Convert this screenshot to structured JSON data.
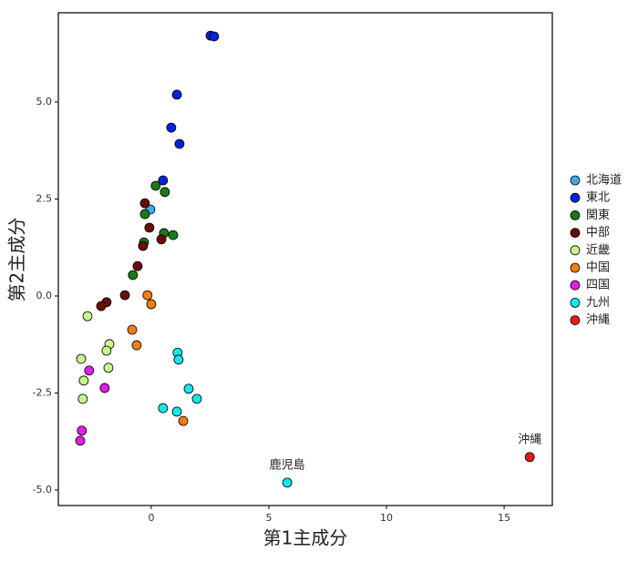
{
  "chart_data": {
    "type": "scatter",
    "xlabel": "第1主成分",
    "ylabel": "第2主成分",
    "xlim": [
      -3.95,
      17.05
    ],
    "ylim": [
      -5.4,
      7.3
    ],
    "xticks": [
      0,
      5,
      10,
      15
    ],
    "yticks": [
      {
        "value": -5,
        "label": "-5.0"
      },
      -2.5,
      {
        "value": 0,
        "label": "0.0"
      },
      2.5,
      {
        "value": 5,
        "label": "5.0"
      }
    ],
    "legend": "right",
    "series": [
      {
        "name": "北海道",
        "color": "#3fa9f5",
        "x": [
          -0.04
        ],
        "values": [
          2.23
        ]
      },
      {
        "name": "東北",
        "color": "#0022dd",
        "x": [
          2.52,
          2.67,
          1.09,
          0.85,
          1.2,
          0.5
        ],
        "values": [
          6.71,
          6.69,
          5.19,
          4.34,
          3.92,
          2.98
        ]
      },
      {
        "name": "関東",
        "color": "#1a7a1a",
        "x": [
          0.19,
          0.58,
          -0.27,
          0.54,
          0.93,
          -0.31,
          -0.78
        ],
        "values": [
          2.84,
          2.68,
          2.11,
          1.62,
          1.57,
          1.38,
          0.54
        ]
      },
      {
        "name": "中部",
        "color": "#6b0b0b",
        "x": [
          -0.27,
          -0.08,
          0.43,
          -0.35,
          -0.58,
          -1.12,
          -1.9,
          -2.13
        ],
        "values": [
          2.39,
          1.76,
          1.46,
          1.29,
          0.77,
          0.02,
          -0.16,
          -0.26
        ]
      },
      {
        "name": "近畿",
        "color": "#c8f58c",
        "x": [
          -2.71,
          -1.78,
          -1.9,
          -1.82,
          -2.98,
          -2.87,
          -2.91
        ],
        "values": [
          -0.52,
          -1.24,
          -1.41,
          -1.85,
          -1.62,
          -2.18,
          -2.65
        ]
      },
      {
        "name": "中国",
        "color": "#f07e10",
        "x": [
          -0.16,
          0,
          -0.81,
          -0.62,
          1.36
        ],
        "values": [
          0.02,
          -0.21,
          -0.87,
          -1.27,
          -3.22
        ]
      },
      {
        "name": "四国",
        "color": "#e61ee6",
        "x": [
          -2.64,
          -1.98,
          -2.95,
          -3.02
        ],
        "values": [
          -1.92,
          -2.37,
          -3.47,
          -3.73
        ]
      },
      {
        "name": "九州",
        "color": "#16e8e8",
        "x": [
          1.12,
          1.16,
          1.59,
          1.94,
          0.5,
          1.09,
          5.78
        ],
        "values": [
          -1.46,
          -1.64,
          -2.39,
          -2.65,
          -2.89,
          -2.98,
          -4.81
        ],
        "point_labels": [
          null,
          null,
          null,
          null,
          null,
          null,
          "鹿児島"
        ]
      },
      {
        "name": "沖縄",
        "color": "#e61a1a",
        "x": [
          16.09
        ],
        "values": [
          -4.15
        ],
        "point_labels": [
          "沖縄"
        ]
      }
    ]
  }
}
